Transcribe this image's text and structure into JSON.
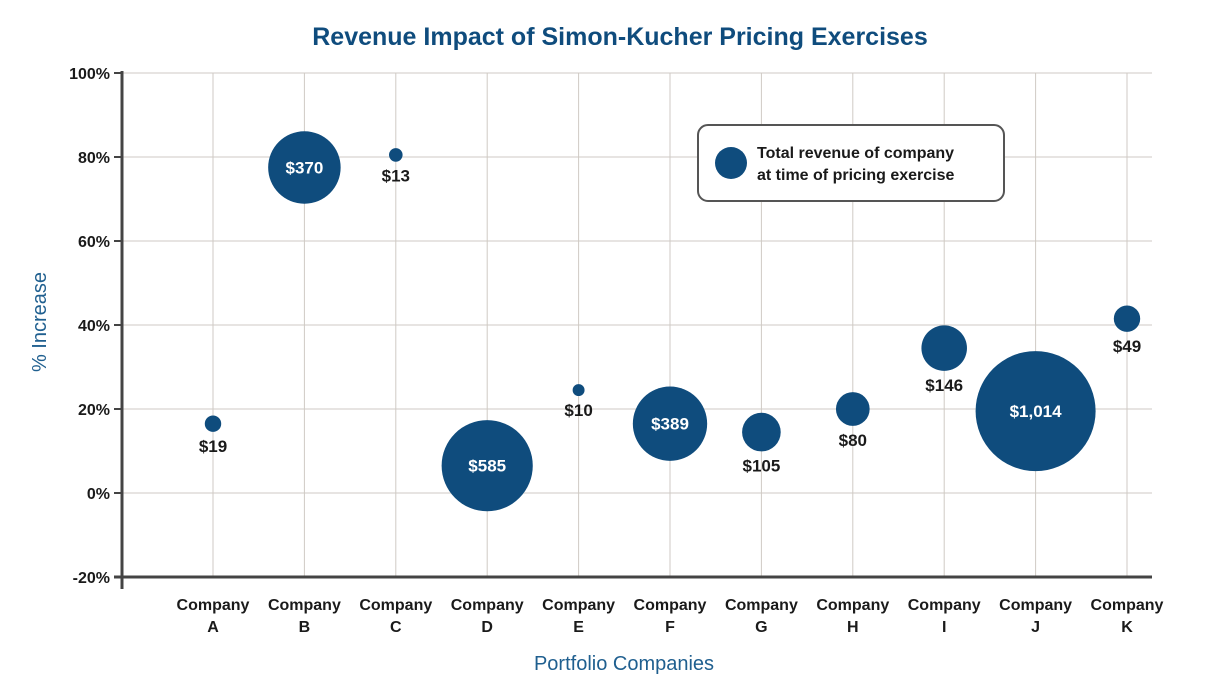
{
  "colors": {
    "bubble": "#0f4c7d",
    "title": "#0f4c7d",
    "axis_title": "#1f5f8f",
    "grid": "#cfcac4",
    "axis": "#444444"
  },
  "chart_data": {
    "type": "scatter",
    "subtype": "bubble",
    "title": "Revenue Impact of Simon-Kucher Pricing Exercises",
    "xlabel": "Portfolio Companies",
    "ylabel": "% Increase",
    "ylim": [
      -20,
      100
    ],
    "yticks": [
      -20,
      0,
      20,
      40,
      60,
      80,
      100
    ],
    "ytick_labels": [
      "-20%",
      "0%",
      "20%",
      "40%",
      "60%",
      "80%",
      "100%"
    ],
    "grid": true,
    "legend": {
      "position": "top-right",
      "text_line1": "Total revenue of company",
      "text_line2": "at time of pricing exercise"
    },
    "points": [
      {
        "line1": "Company",
        "line2": "A",
        "pct": 16.5,
        "revenue": 19,
        "label": "$19",
        "label_pos": "below"
      },
      {
        "line1": "Company",
        "line2": "B",
        "pct": 77.5,
        "revenue": 370,
        "label": "$370",
        "label_pos": "inside"
      },
      {
        "line1": "Company",
        "line2": "C",
        "pct": 80.5,
        "revenue": 13,
        "label": "$13",
        "label_pos": "below"
      },
      {
        "line1": "Company",
        "line2": "D",
        "pct": 6.5,
        "revenue": 585,
        "label": "$585",
        "label_pos": "inside"
      },
      {
        "line1": "Company",
        "line2": "E",
        "pct": 24.5,
        "revenue": 10,
        "label": "$10",
        "label_pos": "below"
      },
      {
        "line1": "Company",
        "line2": "F",
        "pct": 16.5,
        "revenue": 389,
        "label": "$389",
        "label_pos": "inside"
      },
      {
        "line1": "Company",
        "line2": "G",
        "pct": 14.5,
        "revenue": 105,
        "label": "$105",
        "label_pos": "below"
      },
      {
        "line1": "Company",
        "line2": "H",
        "pct": 20,
        "revenue": 80,
        "label": "$80",
        "label_pos": "below"
      },
      {
        "line1": "Company",
        "line2": "I",
        "pct": 34.5,
        "revenue": 146,
        "label": "$146",
        "label_pos": "below"
      },
      {
        "line1": "Company",
        "line2": "J",
        "pct": 19.5,
        "revenue": 1014,
        "label": "$1,014",
        "label_pos": "inside"
      },
      {
        "line1": "Company",
        "line2": "K",
        "pct": 41.5,
        "revenue": 49,
        "label": "$49",
        "label_pos": "below"
      }
    ]
  }
}
